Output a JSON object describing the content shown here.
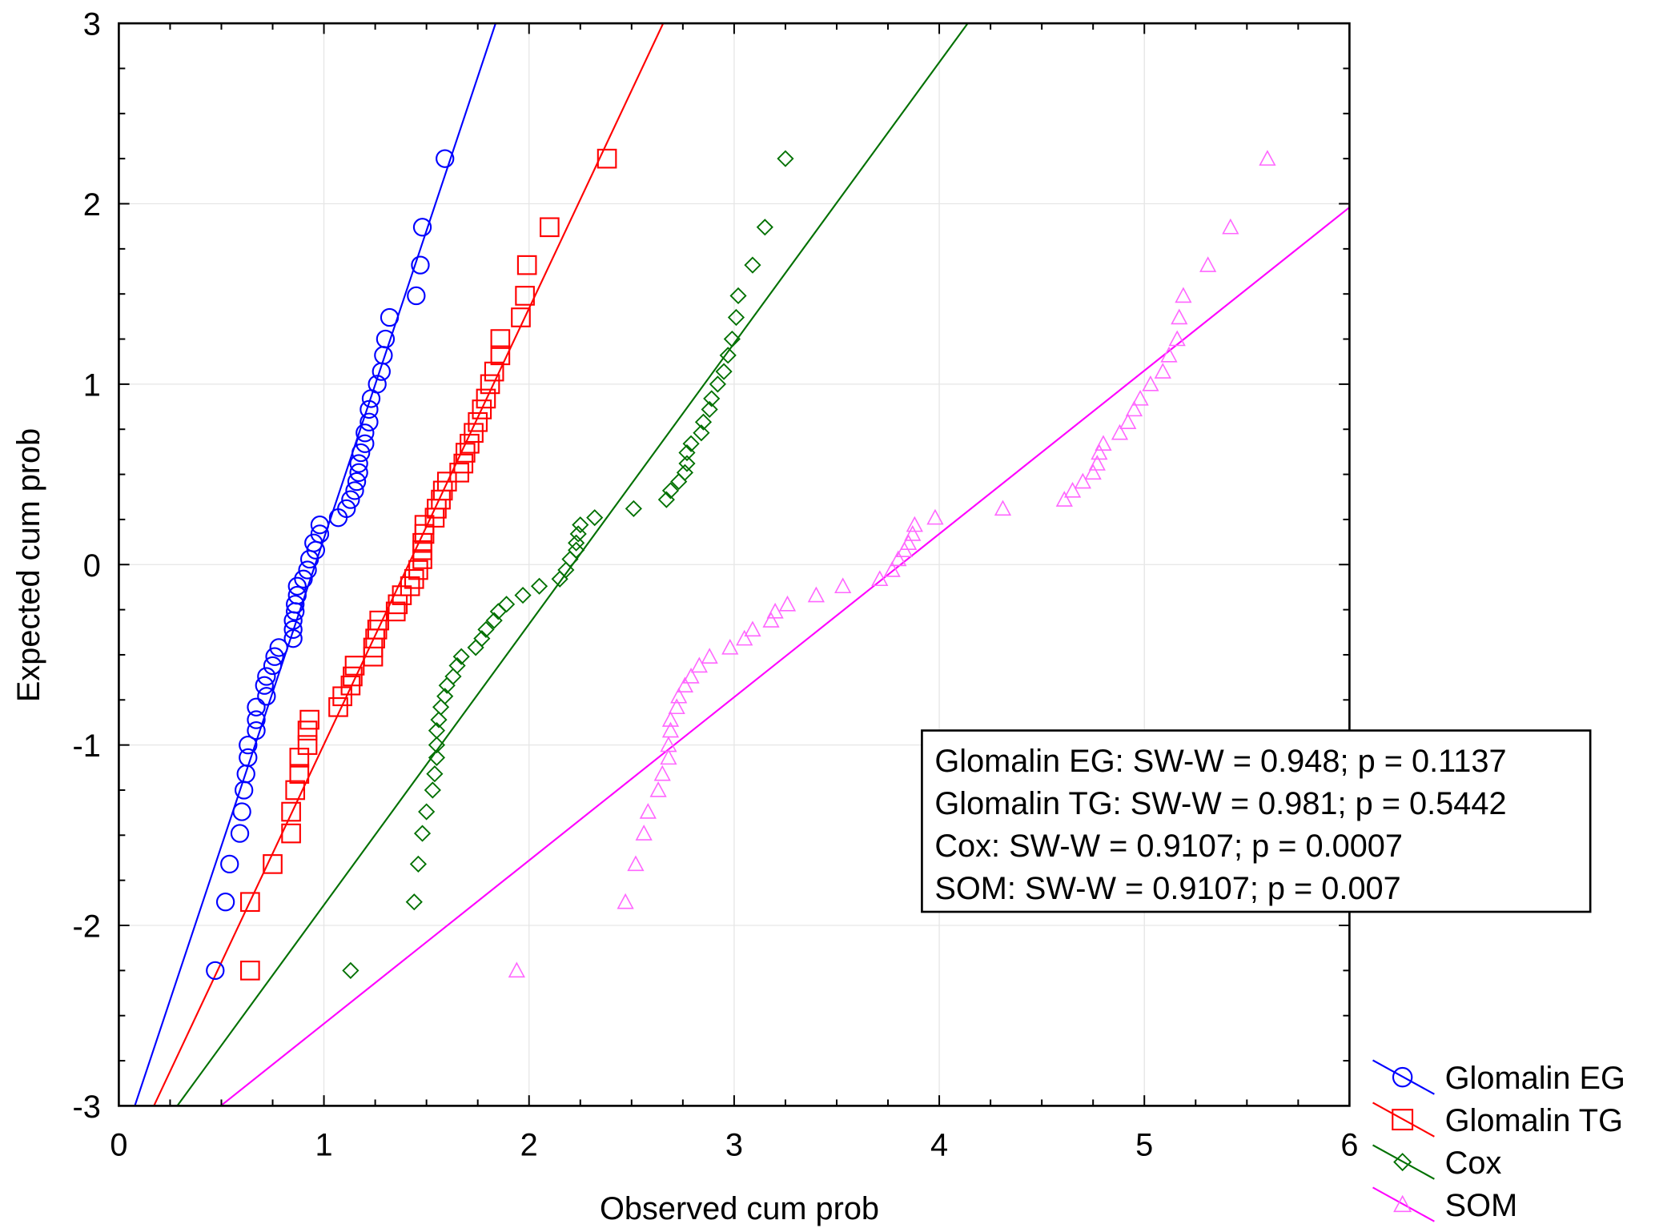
{
  "chart_data": {
    "type": "scatter",
    "title": "",
    "xlabel": "Observed cum prob",
    "ylabel": "Expected cum prob",
    "xlim": [
      0,
      6
    ],
    "ylim": [
      -3,
      3
    ],
    "x_ticks": [
      "0",
      "1",
      "2",
      "3",
      "4",
      "5",
      "6"
    ],
    "y_ticks": [
      "-3",
      "-2",
      "-1",
      "0",
      "1",
      "2",
      "3"
    ],
    "grid": true,
    "legend_position": "bottom-right outside",
    "y_expected": [
      -2.25,
      -1.87,
      -1.66,
      -1.49,
      -1.37,
      -1.25,
      -1.16,
      -1.07,
      -1.0,
      -0.92,
      -0.86,
      -0.79,
      -0.73,
      -0.67,
      -0.62,
      -0.56,
      -0.51,
      -0.46,
      -0.41,
      -0.36,
      -0.31,
      -0.26,
      -0.22,
      -0.17,
      -0.12,
      -0.08,
      -0.03,
      0.03,
      0.08,
      0.12,
      0.17,
      0.22,
      0.26,
      0.31,
      0.36,
      0.41,
      0.46,
      0.51,
      0.56,
      0.62,
      0.67,
      0.73,
      0.79,
      0.86,
      0.92,
      1.0,
      1.07,
      1.16,
      1.25,
      1.37,
      1.49,
      1.66,
      1.87,
      2.25
    ],
    "series": [
      {
        "name": "Glomalin EG",
        "color": "#0000ff",
        "marker": "circle",
        "x": [
          0.47,
          0.52,
          0.54,
          0.59,
          0.6,
          0.61,
          0.62,
          0.63,
          0.63,
          0.67,
          0.67,
          0.67,
          0.72,
          0.71,
          0.72,
          0.75,
          0.76,
          0.78,
          0.85,
          0.85,
          0.85,
          0.86,
          0.86,
          0.87,
          0.87,
          0.9,
          0.92,
          0.93,
          0.96,
          0.95,
          0.98,
          0.98,
          1.07,
          1.11,
          1.13,
          1.15,
          1.16,
          1.17,
          1.17,
          1.18,
          1.2,
          1.2,
          1.22,
          1.22,
          1.23,
          1.26,
          1.28,
          1.29,
          1.3,
          1.32,
          1.45,
          1.47,
          1.48,
          1.59
        ],
        "fit_line": [
          [
            0.078,
            -3
          ],
          [
            1.837,
            3
          ]
        ]
      },
      {
        "name": "Glomalin TG",
        "color": "#ff0000",
        "marker": "square",
        "x": [
          0.64,
          0.64,
          0.75,
          0.84,
          0.84,
          0.86,
          0.88,
          0.88,
          0.92,
          0.92,
          0.93,
          1.07,
          1.09,
          1.13,
          1.14,
          1.15,
          1.24,
          1.24,
          1.25,
          1.26,
          1.27,
          1.35,
          1.36,
          1.38,
          1.42,
          1.44,
          1.46,
          1.48,
          1.48,
          1.48,
          1.49,
          1.49,
          1.54,
          1.55,
          1.57,
          1.58,
          1.6,
          1.66,
          1.68,
          1.69,
          1.71,
          1.73,
          1.75,
          1.77,
          1.79,
          1.81,
          1.83,
          1.86,
          1.86,
          1.96,
          1.98,
          1.99,
          2.1,
          2.38
        ],
        "fit_line": [
          [
            0.171,
            -3
          ],
          [
            2.654,
            3
          ]
        ]
      },
      {
        "name": "Cox",
        "color": "#007000",
        "marker": "diamond",
        "x": [
          1.13,
          1.44,
          1.46,
          1.48,
          1.5,
          1.53,
          1.54,
          1.55,
          1.55,
          1.55,
          1.56,
          1.57,
          1.59,
          1.6,
          1.63,
          1.65,
          1.67,
          1.74,
          1.77,
          1.79,
          1.83,
          1.85,
          1.89,
          1.97,
          2.05,
          2.15,
          2.18,
          2.2,
          2.23,
          2.23,
          2.24,
          2.25,
          2.32,
          2.51,
          2.67,
          2.69,
          2.73,
          2.76,
          2.77,
          2.77,
          2.79,
          2.84,
          2.85,
          2.88,
          2.89,
          2.92,
          2.95,
          2.97,
          2.99,
          3.01,
          3.02,
          3.09,
          3.15,
          3.25
        ],
        "fit_line": [
          [
            0.285,
            -3
          ],
          [
            4.139,
            3
          ]
        ]
      },
      {
        "name": "SOM",
        "color": "#ff00ff",
        "marker": "triangle",
        "x": [
          1.94,
          2.47,
          2.52,
          2.56,
          2.58,
          2.63,
          2.65,
          2.68,
          2.68,
          2.69,
          2.69,
          2.72,
          2.73,
          2.76,
          2.79,
          2.83,
          2.88,
          2.98,
          3.05,
          3.09,
          3.18,
          3.2,
          3.26,
          3.4,
          3.53,
          3.71,
          3.77,
          3.8,
          3.83,
          3.85,
          3.87,
          3.88,
          3.98,
          4.31,
          4.61,
          4.65,
          4.7,
          4.75,
          4.77,
          4.78,
          4.8,
          4.88,
          4.92,
          4.95,
          4.98,
          5.03,
          5.09,
          5.12,
          5.16,
          5.17,
          5.19,
          5.31,
          5.42,
          5.6
        ],
        "fit_line": [
          [
            0.497,
            -3
          ],
          [
            6,
            1.98
          ]
        ]
      }
    ],
    "annotation": [
      "Glomalin EG: SW-W = 0.948; p = 0.1137",
      "Glomalin TG: SW-W = 0.981; p = 0.5442",
      "Cox: SW-W = 0.9107; p = 0.0007",
      "SOM: SW-W = 0.9107; p = 0.007"
    ]
  }
}
